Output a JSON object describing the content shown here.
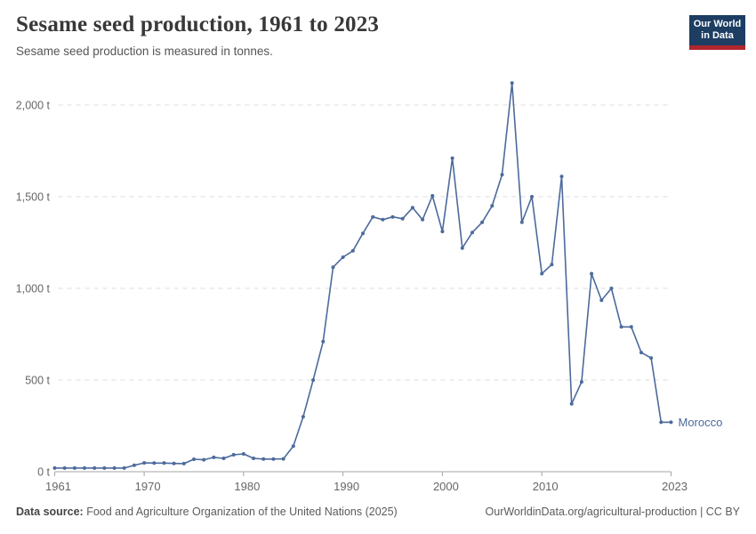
{
  "header": {
    "title": "Sesame seed production, 1961 to 2023",
    "subtitle": "Sesame seed production is measured in tonnes."
  },
  "logo": {
    "line1": "Our World",
    "line2": "in Data",
    "bg_color": "#1d3d63",
    "bar_color": "#b0262d"
  },
  "entity_label": "Morocco",
  "colors": {
    "line": "#4c6a9c",
    "grid": "#dddddd",
    "axis": "#a5a5a5",
    "tick_label": "#666666"
  },
  "chart_data": {
    "type": "line",
    "title": "Sesame seed production, 1961 to 2023",
    "unit": "tonnes",
    "x_range": [
      1961,
      2023
    ],
    "ylim": [
      0,
      2200
    ],
    "grid": true,
    "legend_position": "end-of-line-label",
    "xticks": [
      1961,
      1970,
      1980,
      1990,
      2000,
      2010,
      2023
    ],
    "yticks": [
      {
        "value": 0,
        "label": "0 t"
      },
      {
        "value": 500,
        "label": "500 t"
      },
      {
        "value": 1000,
        "label": "1,000 t"
      },
      {
        "value": 1500,
        "label": "1,500 t"
      },
      {
        "value": 2000,
        "label": "2,000 t"
      }
    ],
    "series": [
      {
        "name": "Morocco",
        "color": "#4c6a9c",
        "x": [
          1961,
          1962,
          1963,
          1964,
          1965,
          1966,
          1967,
          1968,
          1969,
          1970,
          1971,
          1972,
          1973,
          1974,
          1975,
          1976,
          1977,
          1978,
          1979,
          1980,
          1981,
          1982,
          1983,
          1984,
          1985,
          1986,
          1987,
          1988,
          1989,
          1990,
          1991,
          1992,
          1993,
          1994,
          1995,
          1996,
          1997,
          1998,
          1999,
          2000,
          2001,
          2002,
          2003,
          2004,
          2005,
          2006,
          2007,
          2008,
          2009,
          2010,
          2011,
          2012,
          2013,
          2014,
          2015,
          2016,
          2017,
          2018,
          2019,
          2020,
          2021,
          2022,
          2023
        ],
        "values": [
          20,
          20,
          20,
          20,
          20,
          20,
          20,
          20,
          35,
          48,
          47,
          47,
          45,
          44,
          68,
          65,
          78,
          73,
          92,
          97,
          73,
          69,
          69,
          70,
          140,
          300,
          500,
          710,
          1115,
          1170,
          1205,
          1300,
          1390,
          1375,
          1390,
          1380,
          1440,
          1375,
          1505,
          1310,
          1710,
          1220,
          1305,
          1360,
          1450,
          1620,
          2120,
          1360,
          1500,
          1080,
          1130,
          1610,
          370,
          490,
          1080,
          935,
          1000,
          790,
          790,
          650,
          620,
          270,
          270
        ]
      }
    ]
  },
  "footer": {
    "datasource_label": "Data source:",
    "datasource_text": " Food and Agriculture Organization of the United Nations (2025)",
    "link_text": "OurWorldinData.org/agricultural-production",
    "license_suffix": " | CC BY"
  }
}
